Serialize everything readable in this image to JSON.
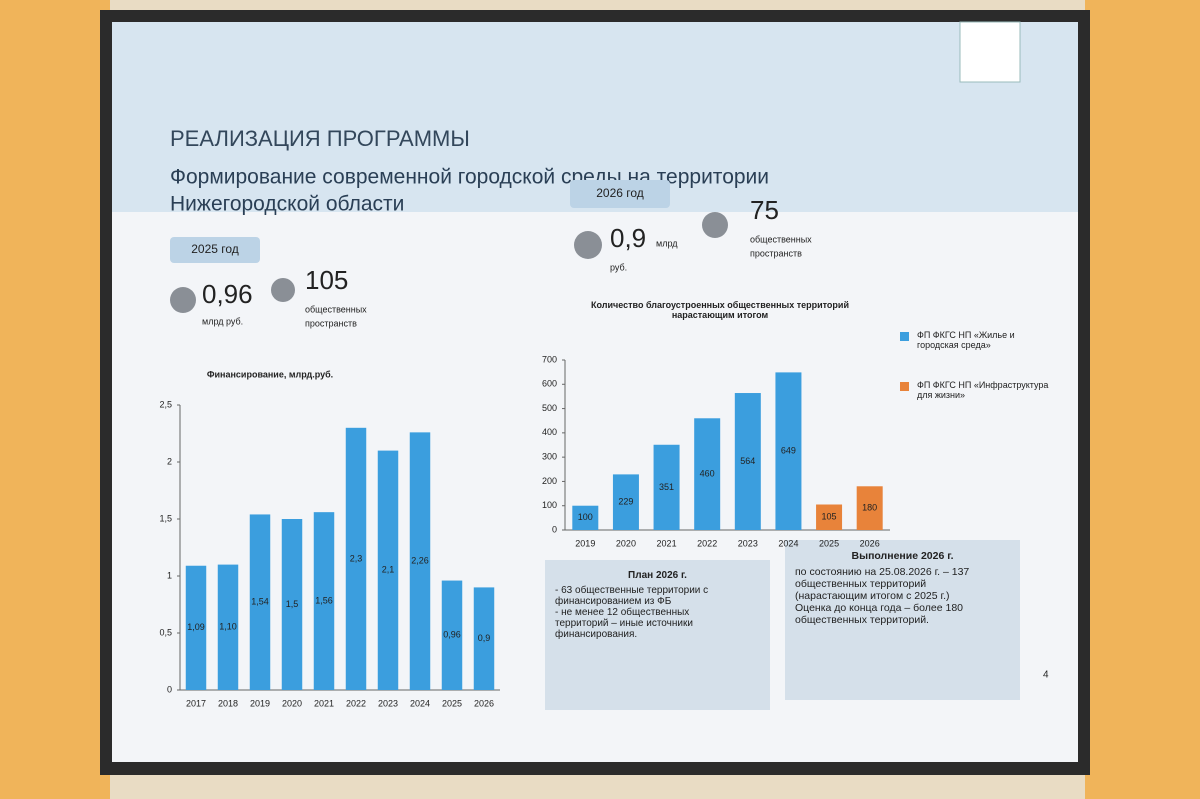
{
  "header": {
    "title": "РЕАЛИЗАЦИЯ ПРОГРАММЫ",
    "subtitle_line1": "Формирование современной городской среды на территории",
    "subtitle_line2": "Нижегородской области"
  },
  "block_2025": {
    "year": "2025 год",
    "amount": "0,96",
    "unit": "млрд руб.",
    "count": "105",
    "count_label_1": "общественных",
    "count_label_2": "пространств"
  },
  "block_2026": {
    "year": "2026 год",
    "amount": "0,9",
    "unit_1": "млрд",
    "unit_2": "руб.",
    "count": "75",
    "count_label_1": "общественных",
    "count_label_2": "пространств"
  },
  "chart_data": [
    {
      "type": "bar",
      "title": "Финансирование, млрд.руб.",
      "categories": [
        "2017",
        "2018",
        "2019",
        "2020",
        "2021",
        "2022",
        "2023",
        "2024",
        "2025",
        "2026"
      ],
      "values": [
        1.09,
        1.1,
        1.54,
        1.5,
        1.56,
        2.3,
        2.1,
        2.26,
        0.96,
        0.9
      ],
      "value_labels": [
        "1,09",
        "1,10",
        "1,54",
        "1,5",
        "1,56",
        "2,3",
        "2,1",
        "2,26",
        "0,96",
        "0,9"
      ],
      "color": "#3b9ede",
      "ylim": [
        0,
        2.5
      ],
      "yticks": [
        0,
        {
          "value": 0.5,
          "label": "0,5"
        },
        1,
        {
          "value": 1.5,
          "label": "1,5"
        },
        2,
        {
          "value": 2.5,
          "label": "2,5"
        }
      ]
    },
    {
      "type": "bar",
      "title": "Количество благоустроенных общественных территорий нарастающим итогом",
      "categories": [
        "2019",
        "2020",
        "2021",
        "2022",
        "2023",
        "2024",
        "2025",
        "2026"
      ],
      "series": [
        {
          "name": "ФП ФКГС НП «Жилье и городская среда»",
          "color": "#3b9ede",
          "values": [
            100,
            229,
            351,
            460,
            564,
            649,
            null,
            null
          ]
        },
        {
          "name": "ФП ФКГС НП «Инфраструктура для жизни»",
          "color": "#e8833a",
          "values": [
            null,
            null,
            null,
            null,
            null,
            null,
            105,
            180
          ]
        }
      ],
      "ylim": [
        0,
        700
      ],
      "yticks": [
        0,
        100,
        200,
        300,
        400,
        500,
        600,
        700
      ]
    }
  ],
  "plan": {
    "title": "План 2026 г.",
    "lines": [
      "- 63 общественные территории с",
      "финансированием из ФБ",
      "- не менее 12 общественных",
      "территорий – иные источники",
      "финансирования."
    ]
  },
  "result": {
    "title": "Выполнение 2026 г.",
    "lines": [
      "по состоянию на 25.08.2026 г. – 137",
      "общественных территорий",
      "(нарастающим итогом с 2025 г.)",
      "Оценка до конца года – более 180",
      "общественных территорий."
    ]
  },
  "page_number": "4"
}
